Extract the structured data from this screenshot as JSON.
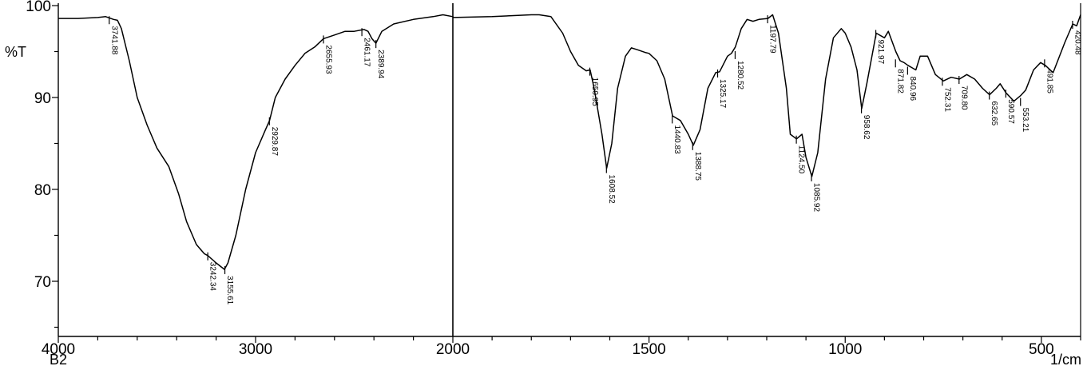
{
  "chart_data": {
    "type": "line",
    "title": "",
    "ylabel": "%T",
    "xlabel": "1/cm",
    "sample_label": "B2",
    "x_reversed": true,
    "x_break": 2000,
    "xlim": [
      4000,
      400
    ],
    "ylim": [
      64,
      100
    ],
    "xticks": [
      4000,
      3000,
      2000,
      1500,
      1000,
      500
    ],
    "yticks": [
      100,
      90,
      80,
      70
    ],
    "line_color": "#000000",
    "series": [
      {
        "x": [
          4000,
          3900,
          3800,
          3760,
          3720,
          3700,
          3680,
          3640,
          3600,
          3550,
          3500,
          3440,
          3390,
          3350,
          3300,
          3260,
          3242,
          3200,
          3158,
          3140,
          3100,
          3050,
          3000,
          2950,
          2929,
          2900,
          2850,
          2800,
          2750,
          2700,
          2656,
          2600,
          2546,
          2500,
          2450,
          2430,
          2410,
          2390,
          2360,
          2300,
          2200,
          2100,
          2050,
          2000,
          1999,
          1900,
          1800,
          1780,
          1750,
          1720,
          1700,
          1680,
          1660,
          1650,
          1640,
          1620,
          1608,
          1595,
          1580,
          1560,
          1545,
          1530,
          1510,
          1500,
          1480,
          1460,
          1440,
          1420,
          1400,
          1387,
          1370,
          1350,
          1330,
          1320,
          1300,
          1290,
          1280,
          1265,
          1250,
          1235,
          1220,
          1197,
          1185,
          1170,
          1150,
          1140,
          1124,
          1110,
          1100,
          1085,
          1070,
          1050,
          1030,
          1010,
          1000,
          985,
          970,
          958,
          945,
          921,
          900,
          890,
          871,
          860,
          850,
          840,
          820,
          809,
          790,
          770,
          750,
          730,
          709,
          690,
          670,
          650,
          632,
          615,
          605,
          590,
          570,
          553,
          540,
          520,
          502,
          490,
          470,
          440,
          420,
          410,
          400
        ],
        "y": [
          98.6,
          98.6,
          98.7,
          98.8,
          98.5,
          98.4,
          97.5,
          94.0,
          90.0,
          87.0,
          84.5,
          82.5,
          79.5,
          76.5,
          74.0,
          73.0,
          72.8,
          72.0,
          71.3,
          72.0,
          75.0,
          80.0,
          84.0,
          86.5,
          87.5,
          90.0,
          92.0,
          93.5,
          94.8,
          95.5,
          96.4,
          96.8,
          97.2,
          97.2,
          97.4,
          97.2,
          96.4,
          95.9,
          97.2,
          98.0,
          98.5,
          98.8,
          99.0,
          98.8,
          98.7,
          98.8,
          99.0,
          99.0,
          98.8,
          97.0,
          95.0,
          93.5,
          92.9,
          93.0,
          91.0,
          86.0,
          82.3,
          85.0,
          91.0,
          94.5,
          95.4,
          95.2,
          94.9,
          94.8,
          94.0,
          92.0,
          88.0,
          87.5,
          86.0,
          84.8,
          86.5,
          91.0,
          92.7,
          92.8,
          94.5,
          94.8,
          95.5,
          97.5,
          98.5,
          98.3,
          98.5,
          98.6,
          99.0,
          97.0,
          91.0,
          86.0,
          85.5,
          86.0,
          83.5,
          81.4,
          84.0,
          92.0,
          96.5,
          97.5,
          97.0,
          95.5,
          93.0,
          88.8,
          91.5,
          97.0,
          96.5,
          97.2,
          95.0,
          94.0,
          93.8,
          93.5,
          93.0,
          94.5,
          94.5,
          92.5,
          91.8,
          92.2,
          92.0,
          92.5,
          92.0,
          91.0,
          90.3,
          91.0,
          91.5,
          90.5,
          89.6,
          90.2,
          90.8,
          93.0,
          93.8,
          93.5,
          92.7,
          96.0,
          98.0,
          97.8,
          99.0
        ]
      }
    ],
    "peak_labels": [
      {
        "label": "3741.88",
        "x": 3741.88,
        "y": 98.5
      },
      {
        "label": "3242.34",
        "x": 3242.34,
        "y": 72.8
      },
      {
        "label": "3155.61",
        "x": 3155.61,
        "y": 71.3
      },
      {
        "label": "2929.87",
        "x": 2929.87,
        "y": 87.5
      },
      {
        "label": "2655.93",
        "x": 2655.93,
        "y": 96.4
      },
      {
        "label": "2461.17",
        "x": 2461.17,
        "y": 97.2
      },
      {
        "label": "2389.94",
        "x": 2389.94,
        "y": 95.9
      },
      {
        "label": "1650.95",
        "x": 1650.95,
        "y": 92.9
      },
      {
        "label": "1608.52",
        "x": 1608.52,
        "y": 82.3
      },
      {
        "label": "1440.83",
        "x": 1440.83,
        "y": 87.7
      },
      {
        "label": "1388.75",
        "x": 1388.75,
        "y": 84.8
      },
      {
        "label": "1325.17",
        "x": 1325.17,
        "y": 92.7
      },
      {
        "label": "1280.52",
        "x": 1280.52,
        "y": 94.7
      },
      {
        "label": "1197.79",
        "x": 1197.79,
        "y": 98.6
      },
      {
        "label": "1124.50",
        "x": 1124.5,
        "y": 85.5
      },
      {
        "label": "1085.92",
        "x": 1085.92,
        "y": 81.4
      },
      {
        "label": "958.62",
        "x": 958.62,
        "y": 88.8
      },
      {
        "label": "921.97",
        "x": 921.97,
        "y": 97.0
      },
      {
        "label": "871.82",
        "x": 871.82,
        "y": 93.8
      },
      {
        "label": "840.96",
        "x": 840.96,
        "y": 93.0
      },
      {
        "label": "752.31",
        "x": 752.31,
        "y": 91.8
      },
      {
        "label": "709.80",
        "x": 709.8,
        "y": 92.0
      },
      {
        "label": "632.65",
        "x": 632.65,
        "y": 90.3
      },
      {
        "label": "590.57",
        "x": 590.57,
        "y": 90.5
      },
      {
        "label": "553.21",
        "x": 553.21,
        "y": 89.6
      },
      {
        "label": "491.85",
        "x": 491.85,
        "y": 93.8
      },
      {
        "label": "420.48",
        "x": 420.48,
        "y": 98.0
      }
    ]
  }
}
